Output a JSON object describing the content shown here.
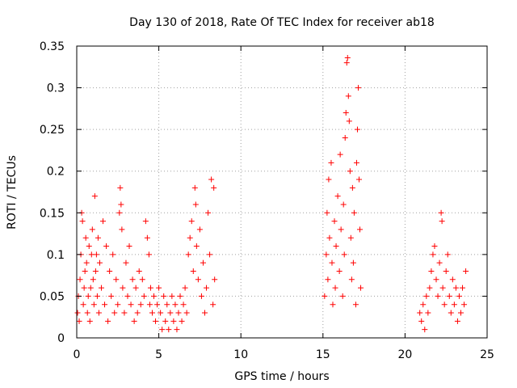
{
  "chart_data": {
    "type": "scatter",
    "title": "Day 130 of 2018, Rate Of TEC Index for receiver ab18",
    "xlabel": "GPS time / hours",
    "ylabel": "ROTI / TECUs",
    "xlim": [
      0,
      25
    ],
    "ylim": [
      0,
      0.35
    ],
    "xticks": [
      0,
      5,
      10,
      15,
      20,
      25
    ],
    "xtick_labels": [
      "0",
      "5",
      "10",
      "15",
      "20",
      "25"
    ],
    "yticks": [
      0,
      0.05,
      0.1,
      0.15,
      0.2,
      0.25,
      0.3,
      0.35
    ],
    "ytick_labels": [
      "0",
      "0.05",
      "0.1",
      "0.15",
      "0.2",
      "0.25",
      "0.3",
      "0.35"
    ],
    "grid": true,
    "marker": "+",
    "color": "#ff0000",
    "series": [
      {
        "name": "ROTI",
        "points": [
          [
            0.05,
            0.03
          ],
          [
            0.1,
            0.05
          ],
          [
            0.15,
            0.02
          ],
          [
            0.2,
            0.07
          ],
          [
            0.25,
            0.1
          ],
          [
            0.3,
            0.15
          ],
          [
            0.35,
            0.14
          ],
          [
            0.4,
            0.04
          ],
          [
            0.45,
            0.06
          ],
          [
            0.5,
            0.08
          ],
          [
            0.55,
            0.12
          ],
          [
            0.6,
            0.09
          ],
          [
            0.65,
            0.03
          ],
          [
            0.7,
            0.05
          ],
          [
            0.75,
            0.11
          ],
          [
            0.8,
            0.02
          ],
          [
            0.85,
            0.06
          ],
          [
            0.9,
            0.1
          ],
          [
            0.95,
            0.13
          ],
          [
            1.0,
            0.07
          ],
          [
            1.05,
            0.04
          ],
          [
            1.1,
            0.17
          ],
          [
            1.15,
            0.08
          ],
          [
            1.2,
            0.1
          ],
          [
            1.25,
            0.05
          ],
          [
            1.3,
            0.12
          ],
          [
            1.35,
            0.03
          ],
          [
            1.4,
            0.09
          ],
          [
            1.5,
            0.06
          ],
          [
            1.6,
            0.14
          ],
          [
            1.7,
            0.04
          ],
          [
            1.8,
            0.11
          ],
          [
            1.9,
            0.02
          ],
          [
            2.0,
            0.08
          ],
          [
            2.1,
            0.05
          ],
          [
            2.2,
            0.1
          ],
          [
            2.3,
            0.03
          ],
          [
            2.4,
            0.07
          ],
          [
            2.5,
            0.04
          ],
          [
            2.6,
            0.15
          ],
          [
            2.65,
            0.18
          ],
          [
            2.7,
            0.16
          ],
          [
            2.75,
            0.13
          ],
          [
            2.8,
            0.06
          ],
          [
            2.9,
            0.03
          ],
          [
            3.0,
            0.09
          ],
          [
            3.1,
            0.05
          ],
          [
            3.2,
            0.11
          ],
          [
            3.3,
            0.04
          ],
          [
            3.4,
            0.07
          ],
          [
            3.5,
            0.02
          ],
          [
            3.6,
            0.06
          ],
          [
            3.7,
            0.03
          ],
          [
            3.8,
            0.08
          ],
          [
            3.9,
            0.04
          ],
          [
            4.0,
            0.07
          ],
          [
            4.1,
            0.05
          ],
          [
            4.2,
            0.14
          ],
          [
            4.3,
            0.12
          ],
          [
            4.4,
            0.1
          ],
          [
            4.45,
            0.04
          ],
          [
            4.5,
            0.06
          ],
          [
            4.6,
            0.03
          ],
          [
            4.7,
            0.05
          ],
          [
            4.8,
            0.02
          ],
          [
            4.9,
            0.04
          ],
          [
            5.0,
            0.06
          ],
          [
            5.1,
            0.03
          ],
          [
            5.2,
            0.01
          ],
          [
            5.3,
            0.05
          ],
          [
            5.4,
            0.02
          ],
          [
            5.5,
            0.04
          ],
          [
            5.6,
            0.01
          ],
          [
            5.7,
            0.03
          ],
          [
            5.8,
            0.05
          ],
          [
            5.9,
            0.02
          ],
          [
            6.0,
            0.04
          ],
          [
            6.1,
            0.01
          ],
          [
            6.2,
            0.03
          ],
          [
            6.3,
            0.05
          ],
          [
            6.4,
            0.02
          ],
          [
            6.5,
            0.04
          ],
          [
            6.6,
            0.06
          ],
          [
            6.7,
            0.03
          ],
          [
            6.8,
            0.1
          ],
          [
            6.9,
            0.12
          ],
          [
            7.0,
            0.14
          ],
          [
            7.1,
            0.08
          ],
          [
            7.2,
            0.18
          ],
          [
            7.25,
            0.16
          ],
          [
            7.3,
            0.11
          ],
          [
            7.4,
            0.07
          ],
          [
            7.5,
            0.13
          ],
          [
            7.6,
            0.05
          ],
          [
            7.7,
            0.09
          ],
          [
            7.8,
            0.03
          ],
          [
            7.9,
            0.06
          ],
          [
            8.0,
            0.15
          ],
          [
            8.1,
            0.1
          ],
          [
            8.2,
            0.19
          ],
          [
            8.3,
            0.04
          ],
          [
            8.35,
            0.18
          ],
          [
            8.4,
            0.07
          ],
          [
            15.1,
            0.05
          ],
          [
            15.2,
            0.1
          ],
          [
            15.25,
            0.15
          ],
          [
            15.3,
            0.07
          ],
          [
            15.35,
            0.19
          ],
          [
            15.4,
            0.12
          ],
          [
            15.5,
            0.21
          ],
          [
            15.55,
            0.09
          ],
          [
            15.6,
            0.04
          ],
          [
            15.7,
            0.14
          ],
          [
            15.75,
            0.06
          ],
          [
            15.8,
            0.11
          ],
          [
            15.9,
            0.17
          ],
          [
            16.0,
            0.08
          ],
          [
            16.05,
            0.22
          ],
          [
            16.1,
            0.13
          ],
          [
            16.2,
            0.05
          ],
          [
            16.25,
            0.16
          ],
          [
            16.3,
            0.1
          ],
          [
            16.35,
            0.24
          ],
          [
            16.4,
            0.27
          ],
          [
            16.45,
            0.33
          ],
          [
            16.5,
            0.336
          ],
          [
            16.55,
            0.29
          ],
          [
            16.6,
            0.26
          ],
          [
            16.65,
            0.2
          ],
          [
            16.7,
            0.12
          ],
          [
            16.75,
            0.07
          ],
          [
            16.8,
            0.18
          ],
          [
            16.85,
            0.09
          ],
          [
            16.9,
            0.15
          ],
          [
            17.0,
            0.04
          ],
          [
            17.05,
            0.21
          ],
          [
            17.1,
            0.25
          ],
          [
            17.15,
            0.3
          ],
          [
            17.2,
            0.19
          ],
          [
            17.25,
            0.13
          ],
          [
            17.3,
            0.06
          ],
          [
            20.9,
            0.03
          ],
          [
            21.0,
            0.02
          ],
          [
            21.1,
            0.04
          ],
          [
            21.2,
            0.01
          ],
          [
            21.3,
            0.05
          ],
          [
            21.4,
            0.03
          ],
          [
            21.5,
            0.06
          ],
          [
            21.6,
            0.08
          ],
          [
            21.7,
            0.1
          ],
          [
            21.8,
            0.11
          ],
          [
            21.9,
            0.07
          ],
          [
            22.0,
            0.05
          ],
          [
            22.1,
            0.09
          ],
          [
            22.2,
            0.15
          ],
          [
            22.25,
            0.14
          ],
          [
            22.3,
            0.06
          ],
          [
            22.4,
            0.04
          ],
          [
            22.5,
            0.08
          ],
          [
            22.6,
            0.1
          ],
          [
            22.7,
            0.05
          ],
          [
            22.8,
            0.03
          ],
          [
            22.9,
            0.07
          ],
          [
            23.0,
            0.04
          ],
          [
            23.1,
            0.06
          ],
          [
            23.2,
            0.02
          ],
          [
            23.3,
            0.05
          ],
          [
            23.4,
            0.03
          ],
          [
            23.5,
            0.06
          ],
          [
            23.6,
            0.04
          ],
          [
            23.7,
            0.08
          ]
        ]
      }
    ]
  }
}
